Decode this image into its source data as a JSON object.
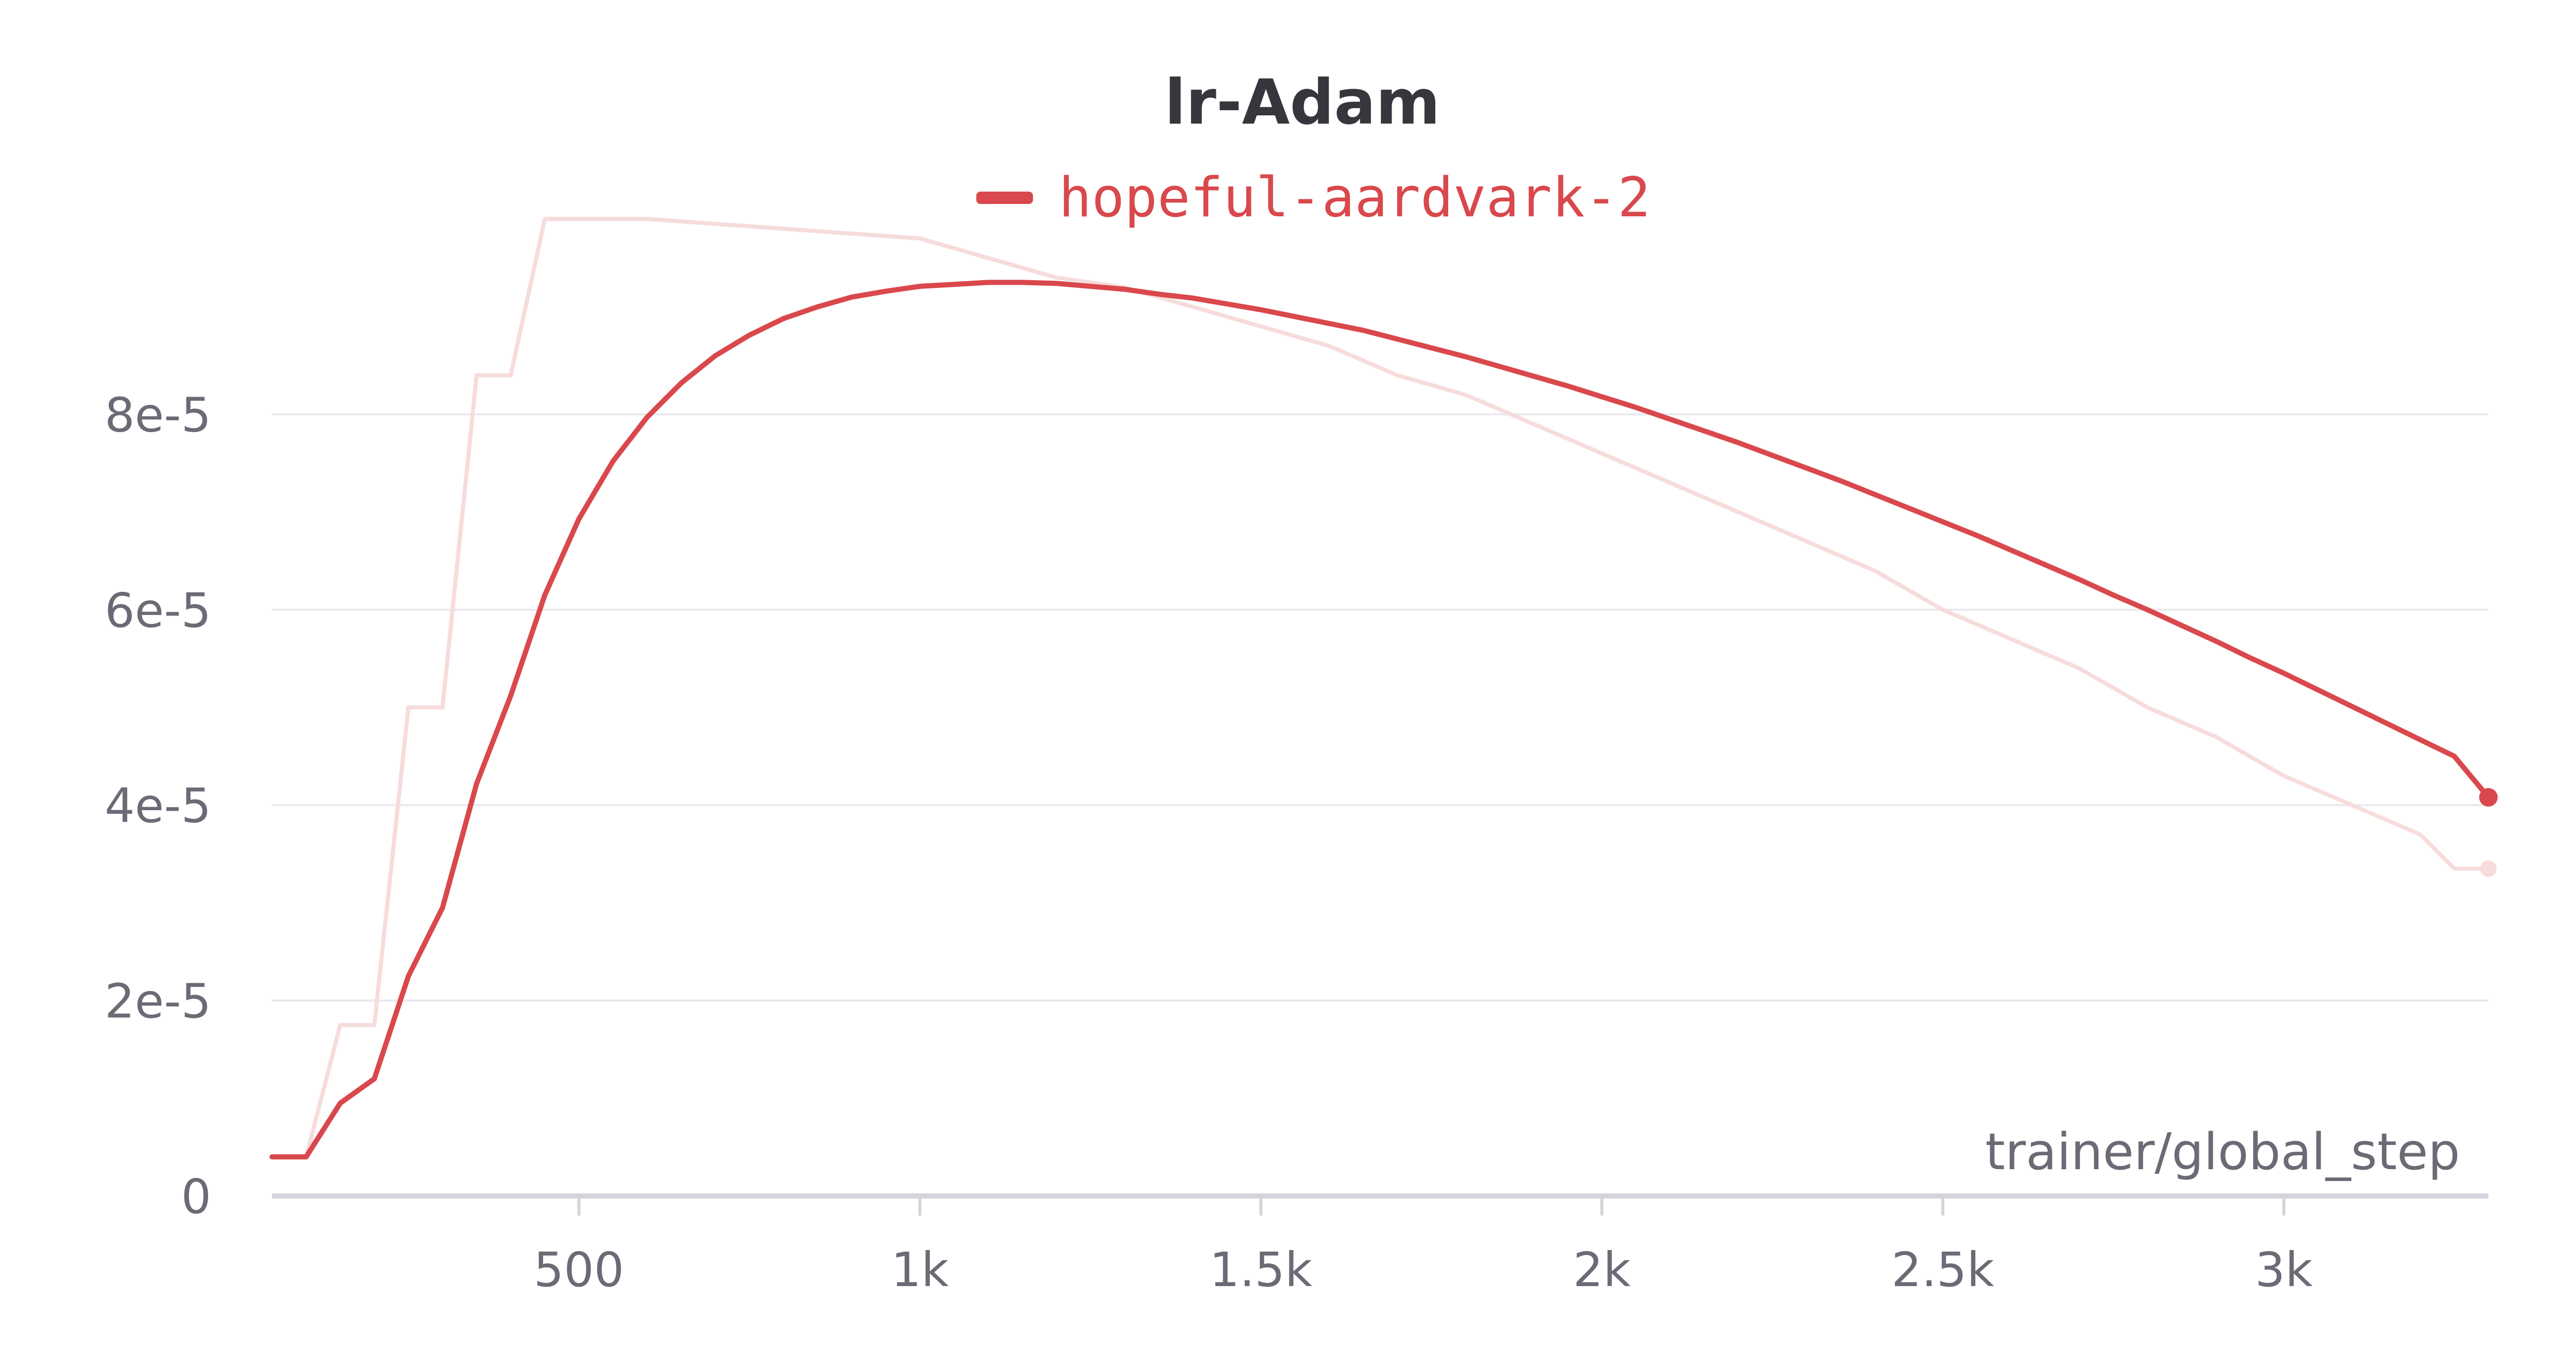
{
  "chart_data": {
    "type": "line",
    "title": "lr-Adam",
    "xlabel": "trainer/global_step",
    "ylabel": "",
    "xlim": [
      50,
      3300
    ],
    "ylim": [
      0,
      0.0001
    ],
    "x_ticks": [
      500,
      1000,
      1500,
      2000,
      2500,
      3000
    ],
    "x_tick_labels": [
      "500",
      "1k",
      "1.5k",
      "2k",
      "2.5k",
      "3k"
    ],
    "y_ticks": [
      0,
      2e-05,
      4e-05,
      6e-05,
      8e-05
    ],
    "y_tick_labels": [
      "0",
      "2e-5",
      "4e-5",
      "6e-5",
      "8e-5"
    ],
    "grid": true,
    "legend_position": "top-center",
    "colors": {
      "series": "#d9484c",
      "raw": "#f7dcdc",
      "grid": "#e9e9ee",
      "axis": "#d4d4dc"
    },
    "series": [
      {
        "name": "hopeful-aardvark-2",
        "x": [
          50,
          100,
          150,
          200,
          250,
          300,
          350,
          400,
          450,
          500,
          550,
          600,
          650,
          700,
          750,
          800,
          850,
          900,
          950,
          1000,
          1050,
          1100,
          1150,
          1200,
          1250,
          1300,
          1350,
          1400,
          1450,
          1500,
          1550,
          1600,
          1650,
          1700,
          1750,
          1800,
          1850,
          1900,
          1950,
          2000,
          2050,
          2100,
          2150,
          2200,
          2250,
          2300,
          2350,
          2400,
          2450,
          2500,
          2550,
          2600,
          2650,
          2700,
          2750,
          2800,
          2850,
          2900,
          2950,
          3000,
          3050,
          3100,
          3150,
          3200,
          3250,
          3300
        ],
        "y": [
          4e-06,
          4e-06,
          9.5e-06,
          1.2e-05,
          2.25e-05,
          2.95e-05,
          4.22e-05,
          5.12e-05,
          6.15e-05,
          6.93e-05,
          7.52e-05,
          7.97e-05,
          8.32e-05,
          8.6e-05,
          8.81e-05,
          8.98e-05,
          9.1e-05,
          9.2e-05,
          9.26e-05,
          9.31e-05,
          9.33e-05,
          9.35e-05,
          9.35e-05,
          9.34e-05,
          9.31e-05,
          9.28e-05,
          9.23e-05,
          9.19e-05,
          9.13e-05,
          9.07e-05,
          9e-05,
          8.93e-05,
          8.86e-05,
          8.77e-05,
          8.68e-05,
          8.59e-05,
          8.49e-05,
          8.39e-05,
          8.29e-05,
          8.18e-05,
          8.07e-05,
          7.95e-05,
          7.83e-05,
          7.71e-05,
          7.58e-05,
          7.45e-05,
          7.32e-05,
          7.18e-05,
          7.04e-05,
          6.9e-05,
          6.76e-05,
          6.61e-05,
          6.46e-05,
          6.31e-05,
          6.15e-05,
          6e-05,
          5.84e-05,
          5.68e-05,
          5.51e-05,
          5.35e-05,
          5.18e-05,
          5.01e-05,
          4.84e-05,
          4.67e-05,
          4.5e-05,
          4.08e-05
        ]
      }
    ],
    "raw_series": {
      "x": [
        50,
        100,
        150,
        200,
        250,
        300,
        350,
        400,
        450,
        500,
        600,
        700,
        800,
        900,
        1000,
        1100,
        1200,
        1300,
        1400,
        1500,
        1600,
        1700,
        1800,
        1900,
        2000,
        2100,
        2200,
        2300,
        2400,
        2500,
        2600,
        2700,
        2800,
        2900,
        3000,
        3100,
        3200,
        3250,
        3300
      ],
      "y": [
        4e-06,
        4e-06,
        1.75e-05,
        1.75e-05,
        5e-05,
        5e-05,
        8.4e-05,
        8.4e-05,
        0.0001,
        0.0001,
        0.0001,
        9.95e-05,
        9.9e-05,
        9.85e-05,
        9.8e-05,
        9.6e-05,
        9.4e-05,
        9.3e-05,
        9.1e-05,
        8.9e-05,
        8.7e-05,
        8.4e-05,
        8.2e-05,
        7.9e-05,
        7.6e-05,
        7.3e-05,
        7e-05,
        6.7e-05,
        6.4e-05,
        6e-05,
        5.7e-05,
        5.4e-05,
        5e-05,
        4.7e-05,
        4.3e-05,
        4e-05,
        3.7e-05,
        3.35e-05,
        3.35e-05
      ]
    }
  }
}
